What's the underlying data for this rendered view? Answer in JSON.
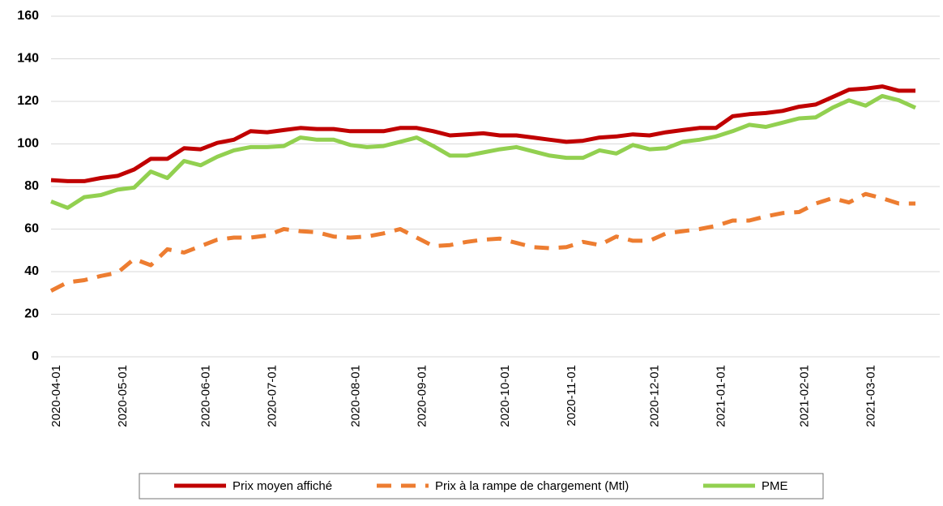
{
  "chart_data": {
    "type": "line",
    "categories": [
      "2020-04-01",
      null,
      null,
      null,
      "2020-05-01",
      null,
      null,
      null,
      null,
      "2020-06-01",
      null,
      null,
      null,
      "2020-07-01",
      null,
      null,
      null,
      null,
      "2020-08-01",
      null,
      null,
      null,
      "2020-09-01",
      null,
      null,
      null,
      null,
      "2020-10-01",
      null,
      null,
      null,
      "2020-11-01",
      null,
      null,
      null,
      null,
      "2020-12-01",
      null,
      null,
      null,
      "2021-01-01",
      null,
      null,
      null,
      null,
      "2021-02-01",
      null,
      null,
      null,
      "2021-03-01",
      null,
      null,
      null
    ],
    "series": [
      {
        "name": "Prix moyen affiché",
        "color": "#c00000",
        "dash": false,
        "values": [
          83,
          82.5,
          82.5,
          84,
          85,
          88,
          93,
          93,
          98,
          97.5,
          100.5,
          102,
          106,
          105.5,
          106.5,
          107.5,
          107,
          107,
          106,
          106,
          106,
          107.5,
          107.5,
          106,
          104,
          104.5,
          105,
          104,
          104,
          103,
          102,
          101,
          101.5,
          103,
          103.5,
          104.5,
          104,
          105.5,
          106.5,
          107.5,
          107.5,
          113,
          114,
          114.5,
          115.5,
          117.5,
          118.5,
          122,
          125.5,
          126,
          127,
          125,
          125
        ]
      },
      {
        "name": "Prix à la rampe de chargement (Mtl)",
        "color": "#ed7d31",
        "dash": true,
        "values": [
          31,
          35,
          36,
          38,
          39.5,
          46,
          43,
          50.5,
          49,
          52,
          55,
          56,
          56,
          57,
          60,
          59,
          58.5,
          56.5,
          56,
          56.5,
          58,
          60,
          56,
          52,
          52.5,
          54,
          55,
          55.5,
          53.5,
          51.5,
          51,
          51.5,
          54,
          52.5,
          56.5,
          54.5,
          54.5,
          58,
          59,
          60,
          61.5,
          64,
          64,
          66,
          67.5,
          68,
          72,
          74.5,
          72.5,
          76.5,
          74.5,
          72,
          72
        ]
      },
      {
        "name": "PME",
        "color": "#92d050",
        "dash": false,
        "values": [
          73,
          70,
          75,
          76,
          78.5,
          79.5,
          87,
          84,
          92,
          90,
          94,
          97,
          98.5,
          98.5,
          99,
          103,
          102,
          102,
          99.5,
          98.5,
          99,
          101,
          103,
          99,
          94.5,
          94.5,
          96,
          97.5,
          98.5,
          96.5,
          94.5,
          93.5,
          93.5,
          97,
          95.5,
          99.5,
          97.5,
          98,
          101,
          102,
          103.5,
          106,
          109,
          108,
          110,
          112,
          112.5,
          117,
          120.5,
          118,
          122.5,
          120.5,
          117
        ]
      }
    ],
    "ylim": [
      0,
      160
    ],
    "yticks": [
      0,
      20,
      40,
      60,
      80,
      100,
      120,
      140,
      160
    ],
    "grid": true,
    "legend": "bottom"
  }
}
